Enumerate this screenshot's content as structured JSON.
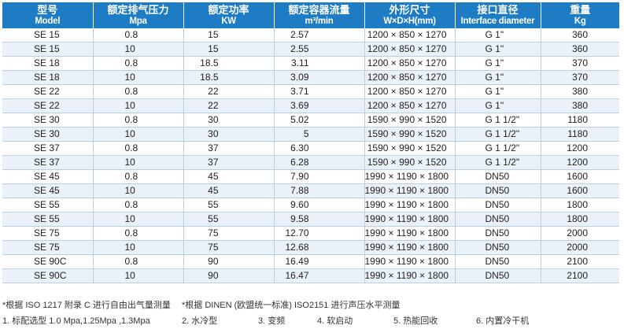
{
  "headers": [
    {
      "zh": "型号",
      "en": "Model"
    },
    {
      "zh": "额定排气压力",
      "en": "Mpa"
    },
    {
      "zh": "额定功率",
      "en": "KW"
    },
    {
      "zh": "额定容器流量",
      "en": "m³/min"
    },
    {
      "zh": "外形尺寸",
      "en": "W×D×H(mm)"
    },
    {
      "zh": "接口直径",
      "en": "Interface diameter"
    },
    {
      "zh": "重量",
      "en": "Kg"
    }
  ],
  "rows": [
    [
      "SE 15",
      "0.8",
      "15",
      "2.57",
      "1200 × 850 × 1270",
      "G 1\"",
      "360"
    ],
    [
      "SE 15",
      "10",
      "15",
      "2.55",
      "1200 × 850 × 1270",
      "G 1\"",
      "360"
    ],
    [
      "SE 18",
      "0.8",
      "18.5",
      "3.11",
      "1200 × 850 × 1270",
      "G 1\"",
      "370"
    ],
    [
      "SE 18",
      "10",
      "18.5",
      "3.09",
      "1200 × 850 × 1270",
      "G 1\"",
      "370"
    ],
    [
      "SE 22",
      "0.8",
      "22",
      "3.71",
      "1200 × 850 × 1270",
      "G 1\"",
      "380"
    ],
    [
      "SE 22",
      "10",
      "22",
      "3.69",
      "1200 × 850 × 1270",
      "G 1\"",
      "380"
    ],
    [
      "SE 30",
      "0.8",
      "30",
      "5.02",
      "1590 × 990 × 1520",
      "G 1 1/2\"",
      "1180"
    ],
    [
      "SE 30",
      "10",
      "30",
      "5",
      "1590 × 990 × 1520",
      "G 1 1/2\"",
      "1180"
    ],
    [
      "SE 37",
      "0.8",
      "37",
      "6.30",
      "1590 × 990 × 1520",
      "G 1 1/2\"",
      "1200"
    ],
    [
      "SE 37",
      "10",
      "37",
      "6.28",
      "1590 × 990 × 1520",
      "G 1 1/2\"",
      "1200"
    ],
    [
      "SE 45",
      "0.8",
      "45",
      "7.90",
      "1990 × 1190 × 1800",
      "DN50",
      "1600"
    ],
    [
      "SE 45",
      "10",
      "45",
      "7.88",
      "1990 × 1190 × 1800",
      "DN50",
      "1600"
    ],
    [
      "SE 55",
      "0.8",
      "55",
      "9.60",
      "1990 × 1190 × 1800",
      "DN50",
      "1800"
    ],
    [
      "SE 55",
      "10",
      "55",
      "9.58",
      "1990 × 1190 × 1800",
      "DN50",
      "1800"
    ],
    [
      "SE 75",
      "0.8",
      "75",
      "12.70",
      "1990 × 1190 × 1800",
      "DN50",
      "2000"
    ],
    [
      "SE 75",
      "10",
      "75",
      "12.68",
      "1990 × 1190 × 1800",
      "DN50",
      "2000"
    ],
    [
      "SE 90C",
      "0.8",
      "90",
      "16.49",
      "1990 × 1190 × 1800",
      "DN50",
      "2100"
    ],
    [
      "SE 90C",
      "10",
      "90",
      "16.47",
      "1990 × 1190 × 1800",
      "DN50",
      "2100"
    ]
  ],
  "notes": {
    "footnote_1": "*根据 ISO 1217 附录 C 进行自由出气量测量",
    "footnote_2": "*根据 DINEN (欧盟统一标准) ISO2151 进行声压水平测量",
    "features": [
      "1. 标配选型 1.0 Mpa,1.25Mpa ,1.3Mpa",
      "2. 水冷型",
      "3. 变频",
      "4. 软启动",
      "5. 热能回收",
      "6. 内置冷干机"
    ]
  }
}
